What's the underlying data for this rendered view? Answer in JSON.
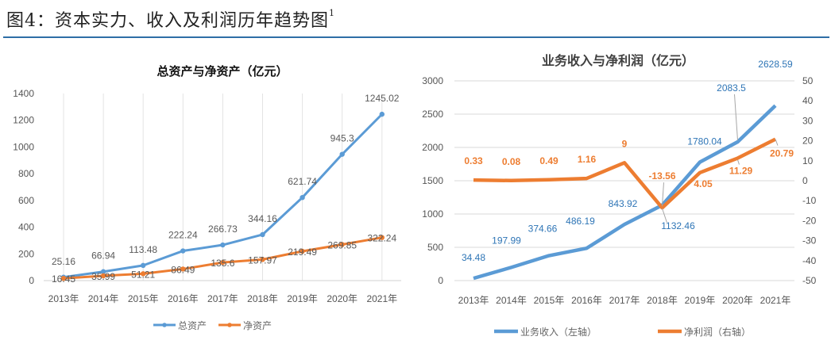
{
  "figure": {
    "title": "图4：资本实力、收入及利润历年趋势图",
    "footnote_mark": "1"
  },
  "colors": {
    "blue": "#5b9bd5",
    "orange": "#ed7d31",
    "rule": "#2e6ea6",
    "label_blue": "#2e75b6",
    "label_orange": "#ed7d31",
    "label_gray": "#595959"
  },
  "chart_data": [
    {
      "type": "line",
      "title": "总资产与净资产（亿元）",
      "categories": [
        "2013年",
        "2014年",
        "2015年",
        "2016年",
        "2017年",
        "2018年",
        "2019年",
        "2020年",
        "2021年"
      ],
      "ylim": [
        0,
        1400
      ],
      "yticks": [
        "0",
        "200",
        "400",
        "600",
        "800",
        "1000",
        "1200",
        "1400"
      ],
      "ytick_values": [
        0,
        200,
        400,
        600,
        800,
        1000,
        1200,
        1400
      ],
      "grid": "vertical",
      "legend_position": "bottom",
      "series": [
        {
          "name": "总资产",
          "color": "#5b9bd5",
          "marker": true,
          "values": [
            25.16,
            66.94,
            113.48,
            222.24,
            266.73,
            344.16,
            621.74,
            945.3,
            1245.02
          ],
          "labels": [
            "25.16",
            "66.94",
            "113.48",
            "222.24",
            "266.73",
            "344.16",
            "621.74",
            "945.3",
            "1245.02"
          ]
        },
        {
          "name": "净资产",
          "color": "#ed7d31",
          "marker": true,
          "values": [
            16.45,
            35.99,
            51.21,
            86.49,
            135.6,
            157.97,
            219.49,
            269.85,
            322.24
          ],
          "labels": [
            "16.45",
            "35.99",
            "51.21",
            "86.49",
            "135.6",
            "157.97",
            "219.49",
            "269.85",
            "322.24"
          ]
        }
      ]
    },
    {
      "type": "line",
      "title": "业务收入与净利润（亿元）",
      "categories": [
        "2013年",
        "2014年",
        "2015年",
        "2016年",
        "2017年",
        "2018年",
        "2019年",
        "2020年",
        "2021年"
      ],
      "ylim": [
        0,
        3000
      ],
      "yticks": [
        "0",
        "500",
        "1000",
        "1500",
        "2000",
        "2500",
        "3000"
      ],
      "ytick_values": [
        0,
        500,
        1000,
        1500,
        2000,
        2500,
        3000
      ],
      "y2lim": [
        -50,
        50
      ],
      "y2ticks": [
        "-50",
        "-40",
        "-30",
        "-20",
        "-10",
        "0",
        "10",
        "20",
        "30",
        "40",
        "50"
      ],
      "y2tick_values": [
        -50,
        -40,
        -30,
        -20,
        -10,
        0,
        10,
        20,
        30,
        40,
        50
      ],
      "grid": "horizontal",
      "legend_position": "bottom",
      "series": [
        {
          "name": "业务收入（左轴）",
          "axis": "left",
          "color": "#5b9bd5",
          "values": [
            34.48,
            197.99,
            374.66,
            486.19,
            843.92,
            1132.46,
            1780.04,
            2083.5,
            2628.59
          ],
          "labels": [
            "34.48",
            "197.99",
            "374.66",
            "486.19",
            "843.92",
            "1132.46",
            "1780.04",
            "2083.5",
            "2628.59"
          ]
        },
        {
          "name": "净利润（右轴）",
          "axis": "right",
          "color": "#ed7d31",
          "values": [
            0.33,
            0.08,
            0.49,
            1.16,
            9,
            -13.56,
            4.05,
            11.29,
            20.79
          ],
          "labels": [
            "0.33",
            "0.08",
            "0.49",
            "1.16",
            "9",
            "-13.56",
            "4.05",
            "11.29",
            "20.79"
          ]
        }
      ]
    }
  ]
}
